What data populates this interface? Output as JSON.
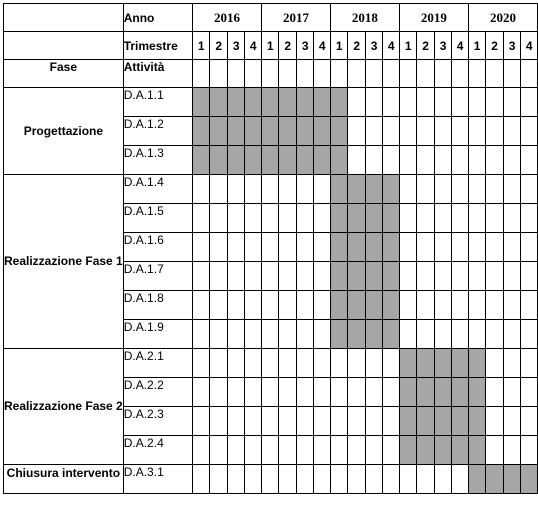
{
  "header": {
    "year_label": "Anno",
    "quarter_label": "Trimestre",
    "phase_label": "Fase",
    "activity_label": "Attività"
  },
  "years": [
    "2016",
    "2017",
    "2018",
    "2019",
    "2020"
  ],
  "quarters": [
    "1",
    "2",
    "3",
    "4"
  ],
  "shaded_color": "#a6a6a6",
  "phases": [
    {
      "name": "Progettazione",
      "activities": [
        {
          "code": "D.A.1.1",
          "start_quarter": 1,
          "end_quarter": 9
        },
        {
          "code": "D.A.1.2",
          "start_quarter": 1,
          "end_quarter": 9
        },
        {
          "code": "D.A.1.3",
          "start_quarter": 1,
          "end_quarter": 9
        }
      ]
    },
    {
      "name": "Realizzazione Fase 1",
      "activities": [
        {
          "code": "D.A.1.4",
          "start_quarter": 9,
          "end_quarter": 12
        },
        {
          "code": "D.A.1.5",
          "start_quarter": 9,
          "end_quarter": 12
        },
        {
          "code": "D.A.1.6",
          "start_quarter": 9,
          "end_quarter": 12
        },
        {
          "code": "D.A.1.7",
          "start_quarter": 9,
          "end_quarter": 12
        },
        {
          "code": "D.A.1.8",
          "start_quarter": 9,
          "end_quarter": 12
        },
        {
          "code": "D.A.1.9",
          "start_quarter": 9,
          "end_quarter": 12
        }
      ]
    },
    {
      "name": "Realizzazione Fase 2",
      "activities": [
        {
          "code": "D.A.2.1",
          "start_quarter": 13,
          "end_quarter": 17
        },
        {
          "code": "D.A.2.2",
          "start_quarter": 13,
          "end_quarter": 17
        },
        {
          "code": "D.A.2.3",
          "start_quarter": 13,
          "end_quarter": 17
        },
        {
          "code": "D.A.2.4",
          "start_quarter": 13,
          "end_quarter": 17
        }
      ]
    },
    {
      "name": "Chiusura intervento",
      "activities": [
        {
          "code": "D.A.3.1",
          "start_quarter": 17,
          "end_quarter": 20
        }
      ]
    }
  ]
}
